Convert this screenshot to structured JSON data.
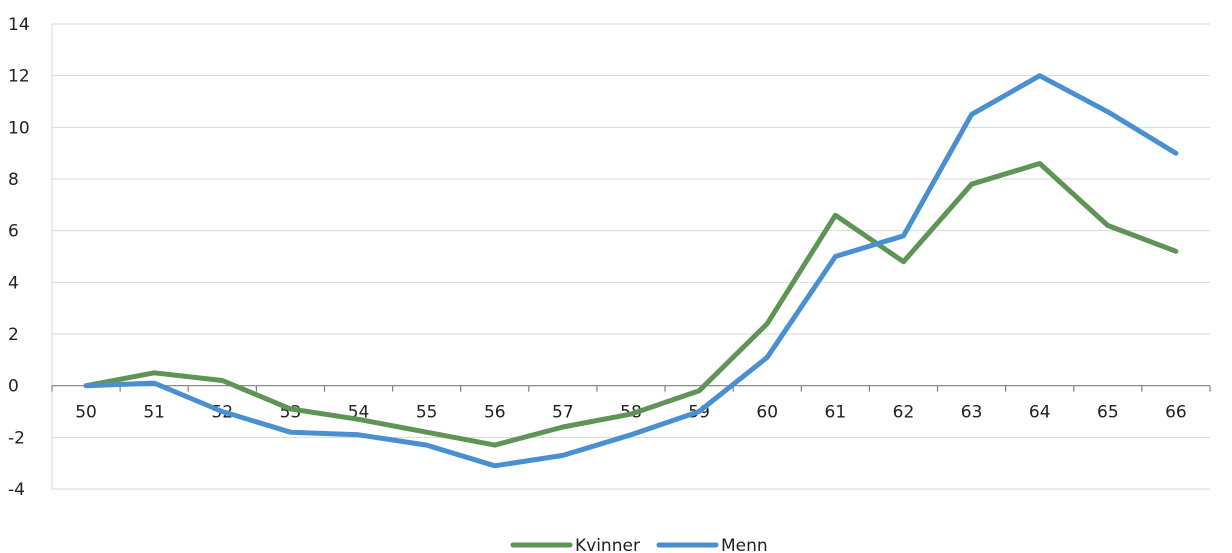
{
  "chart_data": {
    "type": "line",
    "title": "",
    "xlabel": "",
    "ylabel": "",
    "categories": [
      "50",
      "51",
      "52",
      "53",
      "54",
      "55",
      "56",
      "57",
      "58",
      "59",
      "60",
      "61",
      "62",
      "63",
      "64",
      "65",
      "66"
    ],
    "ylim": [
      -4,
      14
    ],
    "yticks": [
      -4,
      -2,
      0,
      2,
      4,
      6,
      8,
      10,
      12,
      14
    ],
    "ytick_labels": [
      "-4",
      "-2",
      "0",
      "2",
      "4",
      "6",
      "8",
      "10",
      "12",
      "14"
    ],
    "grid": true,
    "legend_position": "bottom",
    "series": [
      {
        "name": "Kvinner",
        "color": "#5e9455",
        "values": [
          0,
          0.5,
          0.2,
          -0.9,
          -1.3,
          -1.8,
          -2.3,
          -1.6,
          -1.1,
          -0.2,
          2.4,
          6.6,
          4.8,
          7.8,
          8.6,
          6.2,
          5.2
        ]
      },
      {
        "name": "Menn",
        "color": "#4a8fd0",
        "values": [
          0,
          0.1,
          -1.0,
          -1.8,
          -1.9,
          -2.3,
          -3.1,
          -2.7,
          -1.9,
          -1.0,
          1.1,
          5.0,
          5.8,
          10.5,
          12.0,
          10.6,
          9.0
        ]
      }
    ]
  }
}
